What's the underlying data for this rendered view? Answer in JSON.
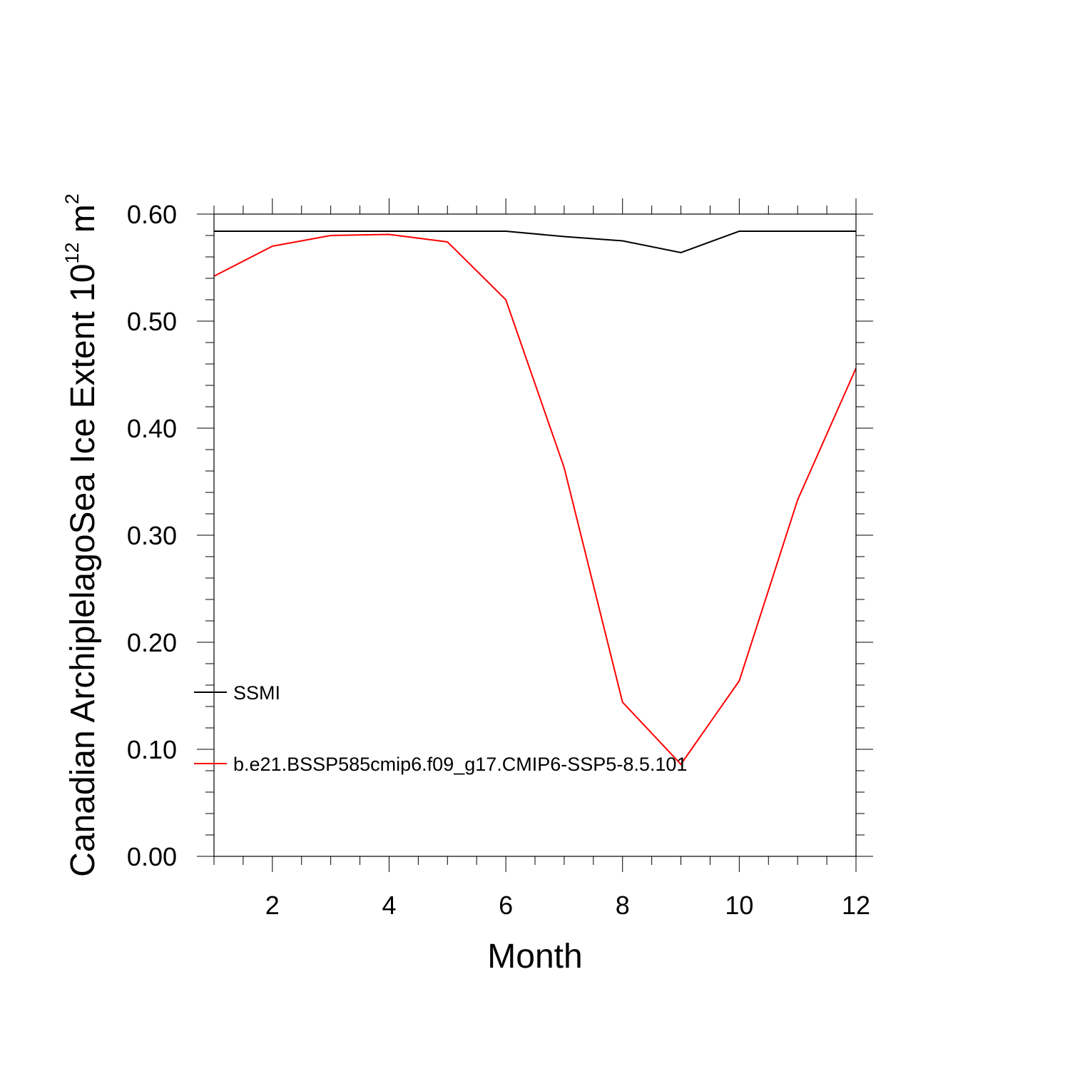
{
  "chart_data": {
    "type": "line",
    "title": "",
    "xlabel": "Month",
    "ylabel_main": "Canadian ArchiplelagoSea Ice Extent 10",
    "ylabel_exp": "12",
    "ylabel_unit": " m",
    "ylabel_unit_exp": "2",
    "xlim": [
      1,
      12
    ],
    "ylim": [
      0.0,
      0.6
    ],
    "x_major_ticks": [
      2,
      4,
      6,
      8,
      10,
      12
    ],
    "x_tick_labels": [
      "2",
      "4",
      "6",
      "8",
      "10",
      "12"
    ],
    "y_major_ticks": [
      0.0,
      0.1,
      0.2,
      0.3,
      0.4,
      0.5,
      0.6
    ],
    "y_tick_labels": [
      "0.00",
      "0.10",
      "0.20",
      "0.30",
      "0.40",
      "0.50",
      "0.60"
    ],
    "grid": false,
    "legend_position": "lower-left",
    "x": [
      1,
      2,
      3,
      4,
      5,
      6,
      7,
      8,
      9,
      10,
      11,
      12
    ],
    "series": [
      {
        "name": "SSMI",
        "color": "#000000",
        "values": [
          0.584,
          0.584,
          0.584,
          0.584,
          0.584,
          0.584,
          0.579,
          0.575,
          0.564,
          0.584,
          0.584,
          0.584
        ]
      },
      {
        "name": "b.e21.BSSP585cmip6.f09_g17.CMIP6-SSP5-8.5.101",
        "color": "#ff0000",
        "values": [
          0.542,
          0.57,
          0.58,
          0.581,
          0.574,
          0.52,
          0.363,
          0.144,
          0.086,
          0.164,
          0.333,
          0.456
        ]
      }
    ]
  }
}
